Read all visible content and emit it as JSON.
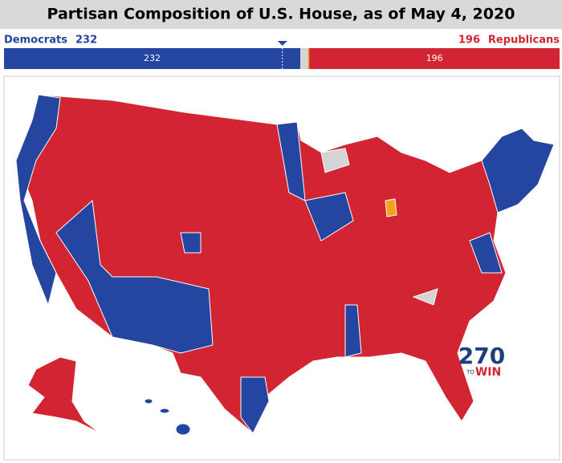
{
  "title": "Partisan Composition of U.S. House, as of May 4, 2020",
  "bar": {
    "xlim": [
      0,
      435
    ],
    "majority_marker": 218,
    "segments": [
      {
        "name": "Democrats",
        "value": 232,
        "color": "#2446a0"
      },
      {
        "value": 6,
        "color": "#d4d4d4"
      },
      {
        "value": 1,
        "color": "#f2a31b"
      },
      {
        "name": "Republicans",
        "value": 196,
        "color": "#d22532"
      }
    ]
  },
  "logo": {
    "number": "270",
    "to": "TO",
    "win": "WIN"
  }
}
